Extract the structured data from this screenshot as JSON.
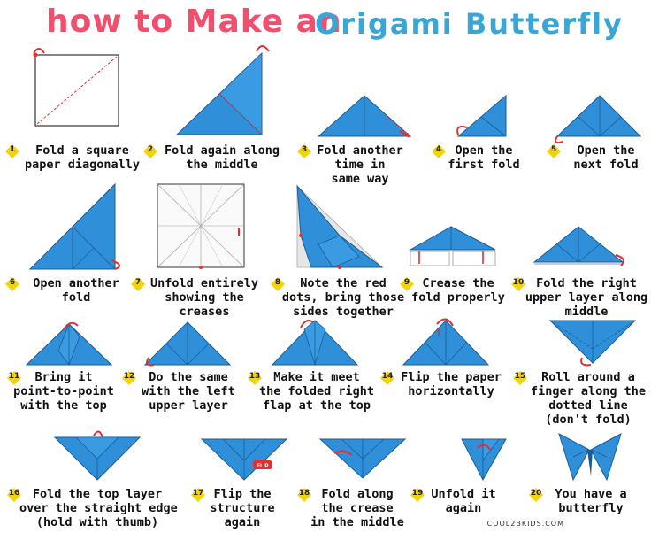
{
  "title": {
    "part1": "how to Make an",
    "part2": "Origami Butterfly"
  },
  "colors": {
    "title_red": "#f0506e",
    "title_blue": "#3aa6d6",
    "paper_blue": "#2f8fd8",
    "badge_yellow": "#f5d400",
    "arrow_red": "#e0302f"
  },
  "steps": [
    {
      "num": "1",
      "text": "Fold a square\npaper diagonally"
    },
    {
      "num": "2",
      "text": "Fold again along\nthe middle"
    },
    {
      "num": "3",
      "text": "Fold another\ntime in\nsame way"
    },
    {
      "num": "4",
      "text": "Open the\nfirst fold"
    },
    {
      "num": "5",
      "text": "Open the\nnext fold"
    },
    {
      "num": "6",
      "text": "Open another\nfold"
    },
    {
      "num": "7",
      "text": "Unfold entirely\nshowing the\ncreases"
    },
    {
      "num": "8",
      "text": "Note the red\ndots, bring those\nsides together"
    },
    {
      "num": "9",
      "text": "Crease the\nfold properly"
    },
    {
      "num": "10",
      "text": "Fold the right\nupper layer along\nmiddle"
    },
    {
      "num": "11",
      "text": "Bring it\npoint-to-point\nwith the top"
    },
    {
      "num": "12",
      "text": "Do the same\nwith the left\nupper layer"
    },
    {
      "num": "13",
      "text": "Make it meet\nthe folded right\nflap at the top"
    },
    {
      "num": "14",
      "text": "Flip the paper\nhorizontally"
    },
    {
      "num": "15",
      "text": "Roll around a\nfinger along the\ndotted line\n(don't fold)"
    },
    {
      "num": "16",
      "text": "Fold the top layer\nover the straight edge\n(hold with thumb)"
    },
    {
      "num": "17",
      "text": "Flip the\nstructure\nagain"
    },
    {
      "num": "18",
      "text": "Fold along\nthe crease\nin the middle"
    },
    {
      "num": "19",
      "text": "Unfold it\nagain"
    },
    {
      "num": "20",
      "text": "You have a\nbutterfly"
    }
  ],
  "flip_label": "FLIP",
  "footer": "COOL2BKIDS.COM"
}
